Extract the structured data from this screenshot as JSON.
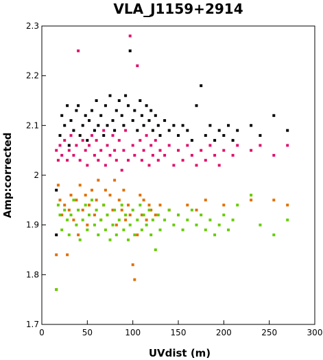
{
  "chart_data": {
    "type": "scatter",
    "title": "VLA_J1159+2914",
    "xlabel": "UVdist (m)",
    "ylabel": "Amp:corrected",
    "xlim": [
      0,
      300
    ],
    "ylim": [
      1.7,
      2.3
    ],
    "xticks": [
      "0",
      "50",
      "100",
      "150",
      "200",
      "250",
      "300"
    ],
    "yticks": [
      "1.7",
      "1.8",
      "1.9",
      "2",
      "2.1",
      "2.2",
      "2.3"
    ],
    "grid": false,
    "legend": "none",
    "series": [
      {
        "color": "#000000",
        "points": [
          [
            16,
            1.97
          ],
          [
            16,
            1.88
          ],
          [
            20,
            2.08
          ],
          [
            22,
            2.12
          ],
          [
            25,
            2.1
          ],
          [
            28,
            2.14
          ],
          [
            30,
            2.06
          ],
          [
            32,
            2.11
          ],
          [
            35,
            2.09
          ],
          [
            38,
            2.13
          ],
          [
            40,
            2.14
          ],
          [
            42,
            2.08
          ],
          [
            45,
            2.1
          ],
          [
            48,
            2.12
          ],
          [
            50,
            2.07
          ],
          [
            52,
            2.11
          ],
          [
            55,
            2.13
          ],
          [
            58,
            2.09
          ],
          [
            60,
            2.15
          ],
          [
            62,
            2.1
          ],
          [
            65,
            2.12
          ],
          [
            68,
            2.08
          ],
          [
            70,
            2.14
          ],
          [
            72,
            2.1
          ],
          [
            75,
            2.16
          ],
          [
            78,
            2.11
          ],
          [
            80,
            2.09
          ],
          [
            82,
            2.13
          ],
          [
            85,
            2.15
          ],
          [
            88,
            2.12
          ],
          [
            90,
            2.1
          ],
          [
            92,
            2.16
          ],
          [
            95,
            2.14
          ],
          [
            97,
            2.25
          ],
          [
            100,
            2.11
          ],
          [
            102,
            2.13
          ],
          [
            105,
            2.09
          ],
          [
            108,
            2.15
          ],
          [
            110,
            2.12
          ],
          [
            112,
            2.1
          ],
          [
            115,
            2.14
          ],
          [
            118,
            2.11
          ],
          [
            120,
            2.13
          ],
          [
            122,
            2.09
          ],
          [
            125,
            2.12
          ],
          [
            128,
            2.1
          ],
          [
            130,
            2.08
          ],
          [
            135,
            2.11
          ],
          [
            140,
            2.09
          ],
          [
            145,
            2.1
          ],
          [
            150,
            2.08
          ],
          [
            155,
            2.1
          ],
          [
            160,
            2.09
          ],
          [
            165,
            2.07
          ],
          [
            170,
            2.14
          ],
          [
            175,
            2.18
          ],
          [
            180,
            2.08
          ],
          [
            185,
            2.1
          ],
          [
            190,
            2.07
          ],
          [
            195,
            2.09
          ],
          [
            200,
            2.08
          ],
          [
            205,
            2.1
          ],
          [
            210,
            2.07
          ],
          [
            215,
            2.09
          ],
          [
            230,
            2.1
          ],
          [
            240,
            2.08
          ],
          [
            255,
            2.12
          ],
          [
            270,
            2.09
          ]
        ]
      },
      {
        "color": "#e0106e",
        "points": [
          [
            16,
            2.05
          ],
          [
            18,
            2.03
          ],
          [
            20,
            2.06
          ],
          [
            22,
            2.04
          ],
          [
            25,
            2.07
          ],
          [
            28,
            2.03
          ],
          [
            30,
            2.05
          ],
          [
            32,
            2.08
          ],
          [
            35,
            2.04
          ],
          [
            38,
            2.06
          ],
          [
            40,
            2.25
          ],
          [
            42,
            2.03
          ],
          [
            45,
            2.07
          ],
          [
            48,
            2.05
          ],
          [
            50,
            2.02
          ],
          [
            52,
            2.06
          ],
          [
            55,
            2.08
          ],
          [
            58,
            2.04
          ],
          [
            60,
            2.07
          ],
          [
            62,
            2.03
          ],
          [
            65,
            2.05
          ],
          [
            68,
            2.09
          ],
          [
            70,
            2.02
          ],
          [
            72,
            2.06
          ],
          [
            75,
            2.04
          ],
          [
            78,
            2.08
          ],
          [
            80,
            2.05
          ],
          [
            82,
            2.03
          ],
          [
            85,
            2.07
          ],
          [
            88,
            2.01
          ],
          [
            90,
            2.05
          ],
          [
            92,
            2.09
          ],
          [
            95,
            2.03
          ],
          [
            97,
            2.28
          ],
          [
            100,
            2.06
          ],
          [
            102,
            2.04
          ],
          [
            105,
            2.22
          ],
          [
            108,
            2.07
          ],
          [
            110,
            2.03
          ],
          [
            112,
            2.05
          ],
          [
            115,
            2.08
          ],
          [
            118,
            2.02
          ],
          [
            120,
            2.06
          ],
          [
            122,
            2.04
          ],
          [
            125,
            2.07
          ],
          [
            128,
            2.03
          ],
          [
            130,
            2.05
          ],
          [
            135,
            2.04
          ],
          [
            140,
            2.06
          ],
          [
            145,
            2.02
          ],
          [
            150,
            2.05
          ],
          [
            155,
            2.03
          ],
          [
            160,
            2.06
          ],
          [
            165,
            2.04
          ],
          [
            170,
            2.02
          ],
          [
            175,
            2.05
          ],
          [
            180,
            2.03
          ],
          [
            185,
            2.06
          ],
          [
            190,
            2.04
          ],
          [
            195,
            2.02
          ],
          [
            200,
            2.05
          ],
          [
            210,
            2.04
          ],
          [
            215,
            2.06
          ],
          [
            230,
            2.05
          ],
          [
            240,
            2.06
          ],
          [
            255,
            2.04
          ],
          [
            270,
            2.06
          ]
        ]
      },
      {
        "color": "#e07000",
        "points": [
          [
            16,
            1.84
          ],
          [
            16,
            1.77
          ],
          [
            18,
            1.98
          ],
          [
            20,
            1.95
          ],
          [
            22,
            1.92
          ],
          [
            25,
            1.94
          ],
          [
            28,
            1.84
          ],
          [
            30,
            1.93
          ],
          [
            32,
            1.96
          ],
          [
            35,
            1.91
          ],
          [
            38,
            1.95
          ],
          [
            40,
            1.88
          ],
          [
            42,
            1.98
          ],
          [
            45,
            1.93
          ],
          [
            48,
            1.96
          ],
          [
            50,
            1.9
          ],
          [
            52,
            1.94
          ],
          [
            55,
            1.97
          ],
          [
            58,
            1.92
          ],
          [
            60,
            1.95
          ],
          [
            62,
            1.99
          ],
          [
            65,
            1.91
          ],
          [
            68,
            1.94
          ],
          [
            70,
            1.97
          ],
          [
            72,
            1.92
          ],
          [
            75,
            1.96
          ],
          [
            78,
            1.93
          ],
          [
            80,
            1.99
          ],
          [
            82,
            1.9
          ],
          [
            85,
            1.95
          ],
          [
            88,
            1.93
          ],
          [
            90,
            1.97
          ],
          [
            92,
            1.91
          ],
          [
            95,
            1.94
          ],
          [
            97,
            1.92
          ],
          [
            100,
            1.82
          ],
          [
            102,
            1.79
          ],
          [
            105,
            1.88
          ],
          [
            108,
            1.96
          ],
          [
            110,
            1.92
          ],
          [
            112,
            1.95
          ],
          [
            115,
            1.91
          ],
          [
            118,
            1.94
          ],
          [
            120,
            1.93
          ],
          [
            125,
            1.92
          ],
          [
            130,
            1.94
          ],
          [
            140,
            1.93
          ],
          [
            150,
            1.92
          ],
          [
            160,
            1.94
          ],
          [
            170,
            1.93
          ],
          [
            180,
            1.95
          ],
          [
            200,
            1.94
          ],
          [
            230,
            1.95
          ],
          [
            255,
            1.95
          ],
          [
            270,
            1.94
          ]
        ]
      },
      {
        "color": "#66cc00",
        "points": [
          [
            16,
            1.77
          ],
          [
            18,
            1.94
          ],
          [
            20,
            1.92
          ],
          [
            22,
            1.89
          ],
          [
            25,
            1.93
          ],
          [
            28,
            1.91
          ],
          [
            30,
            1.88
          ],
          [
            32,
            1.92
          ],
          [
            35,
            1.95
          ],
          [
            38,
            1.9
          ],
          [
            40,
            1.93
          ],
          [
            42,
            1.87
          ],
          [
            45,
            1.91
          ],
          [
            48,
            1.94
          ],
          [
            50,
            1.89
          ],
          [
            52,
            1.92
          ],
          [
            55,
            1.95
          ],
          [
            58,
            1.9
          ],
          [
            60,
            1.93
          ],
          [
            62,
            1.88
          ],
          [
            65,
            1.91
          ],
          [
            68,
            1.94
          ],
          [
            70,
            1.89
          ],
          [
            72,
            1.92
          ],
          [
            75,
            1.87
          ],
          [
            78,
            1.9
          ],
          [
            80,
            1.93
          ],
          [
            82,
            1.88
          ],
          [
            85,
            1.91
          ],
          [
            88,
            1.94
          ],
          [
            90,
            1.89
          ],
          [
            92,
            1.92
          ],
          [
            95,
            1.87
          ],
          [
            97,
            1.9
          ],
          [
            100,
            1.93
          ],
          [
            102,
            1.88
          ],
          [
            105,
            1.91
          ],
          [
            108,
            1.94
          ],
          [
            110,
            1.89
          ],
          [
            112,
            1.92
          ],
          [
            115,
            1.9
          ],
          [
            118,
            1.93
          ],
          [
            120,
            1.88
          ],
          [
            122,
            1.91
          ],
          [
            125,
            1.85
          ],
          [
            128,
            1.92
          ],
          [
            130,
            1.89
          ],
          [
            135,
            1.91
          ],
          [
            140,
            1.93
          ],
          [
            145,
            1.9
          ],
          [
            150,
            1.92
          ],
          [
            155,
            1.89
          ],
          [
            160,
            1.91
          ],
          [
            165,
            1.93
          ],
          [
            170,
            1.9
          ],
          [
            175,
            1.92
          ],
          [
            180,
            1.89
          ],
          [
            185,
            1.91
          ],
          [
            190,
            1.88
          ],
          [
            195,
            1.9
          ],
          [
            200,
            1.92
          ],
          [
            205,
            1.89
          ],
          [
            210,
            1.91
          ],
          [
            215,
            1.94
          ],
          [
            230,
            1.96
          ],
          [
            240,
            1.9
          ],
          [
            255,
            1.88
          ],
          [
            270,
            1.91
          ]
        ]
      }
    ]
  }
}
